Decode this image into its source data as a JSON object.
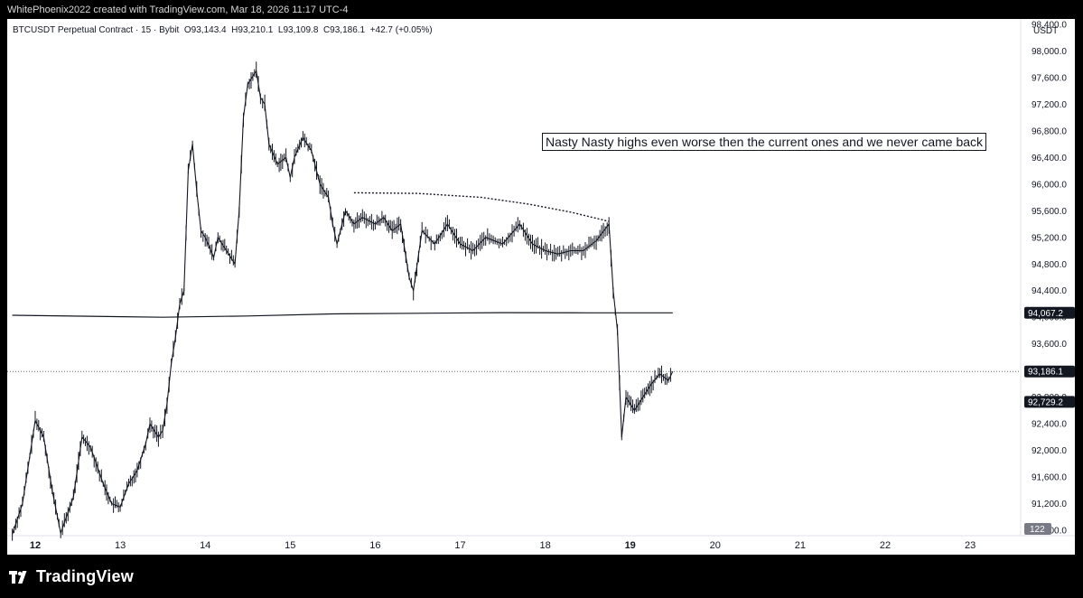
{
  "caption": "WhitePhoenix2022 created with TradingView.com, Mar 18, 2026 11:17 UTC-4",
  "legend": {
    "symbol": "BTCUSDT Perpetual Contract · 15 · Bybit",
    "o": "O93,143.4",
    "h": "H93,210.1",
    "l": "L93,109.8",
    "c": "C93,186.1",
    "change": "+42.7 (+0.05%)"
  },
  "annotation": "Nasty Nasty highs even worse then the current ones and we never came back",
  "footer": {
    "brand": "TradingView",
    "logo_icon": "tradingview-logo-icon"
  },
  "chart_data": {
    "type": "candlestick",
    "currency": "USDT",
    "y_axis": {
      "ticks": [
        "98,400.0",
        "98,000.0",
        "97,600.0",
        "97,200.0",
        "96,800.0",
        "96,400.0",
        "96,000.0",
        "95,600.0",
        "95,200.0",
        "94,800.0",
        "94,400.0",
        "94,000.0",
        "93,600.0",
        "93,200.0",
        "92,800.0",
        "92,400.0",
        "92,000.0",
        "91,600.0",
        "91,200.0",
        "90,800.0"
      ],
      "range": [
        90720,
        98480
      ]
    },
    "x_axis": {
      "ticks": [
        "12",
        "13",
        "14",
        "15",
        "16",
        "17",
        "18",
        "19",
        "20",
        "21",
        "22",
        "23"
      ],
      "bold": [
        "12",
        "19"
      ]
    },
    "price_labels": {
      "ma": "94,067.2",
      "last": "93,186.1",
      "low": "92,729.2",
      "volume": "122"
    },
    "moving_average": [
      [
        11.73,
        94030
      ],
      [
        13.5,
        94000
      ],
      [
        14.5,
        94020
      ],
      [
        15.5,
        94050
      ],
      [
        16.5,
        94060
      ],
      [
        17.5,
        94070
      ],
      [
        18.5,
        94067
      ],
      [
        19.5,
        94067.2
      ]
    ],
    "dotted_curve": [
      [
        15.75,
        95870
      ],
      [
        16.5,
        95860
      ],
      [
        17.25,
        95800
      ],
      [
        17.8,
        95700
      ],
      [
        18.3,
        95580
      ],
      [
        18.75,
        95440
      ]
    ],
    "price_path": [
      [
        11.73,
        90740
      ],
      [
        11.85,
        91200
      ],
      [
        12.0,
        92450
      ],
      [
        12.1,
        92200
      ],
      [
        12.2,
        91400
      ],
      [
        12.3,
        90760
      ],
      [
        12.45,
        91300
      ],
      [
        12.55,
        92200
      ],
      [
        12.65,
        92050
      ],
      [
        12.8,
        91500
      ],
      [
        12.9,
        91200
      ],
      [
        13.0,
        91150
      ],
      [
        13.1,
        91500
      ],
      [
        13.2,
        91700
      ],
      [
        13.3,
        92100
      ],
      [
        13.35,
        92400
      ],
      [
        13.45,
        92200
      ],
      [
        13.5,
        92300
      ],
      [
        13.55,
        92700
      ],
      [
        13.6,
        93300
      ],
      [
        13.65,
        93700
      ],
      [
        13.7,
        94200
      ],
      [
        13.75,
        94400
      ],
      [
        13.8,
        96200
      ],
      [
        13.85,
        96600
      ],
      [
        13.9,
        95900
      ],
      [
        13.95,
        95300
      ],
      [
        14.0,
        95200
      ],
      [
        14.1,
        94900
      ],
      [
        14.15,
        95200
      ],
      [
        14.25,
        95000
      ],
      [
        14.35,
        94800
      ],
      [
        14.4,
        95600
      ],
      [
        14.45,
        97000
      ],
      [
        14.5,
        97500
      ],
      [
        14.6,
        97700
      ],
      [
        14.65,
        97300
      ],
      [
        14.7,
        97200
      ],
      [
        14.75,
        96600
      ],
      [
        14.85,
        96300
      ],
      [
        14.95,
        96400
      ],
      [
        15.0,
        96100
      ],
      [
        15.05,
        96400
      ],
      [
        15.15,
        96700
      ],
      [
        15.25,
        96500
      ],
      [
        15.35,
        96000
      ],
      [
        15.45,
        95800
      ],
      [
        15.5,
        95400
      ],
      [
        15.55,
        95100
      ],
      [
        15.65,
        95600
      ],
      [
        15.75,
        95400
      ],
      [
        15.85,
        95500
      ],
      [
        16.0,
        95400
      ],
      [
        16.1,
        95500
      ],
      [
        16.2,
        95300
      ],
      [
        16.3,
        95400
      ],
      [
        16.4,
        94600
      ],
      [
        16.45,
        94400
      ],
      [
        16.55,
        95300
      ],
      [
        16.7,
        95100
      ],
      [
        16.85,
        95400
      ],
      [
        17.0,
        95100
      ],
      [
        17.15,
        95000
      ],
      [
        17.3,
        95200
      ],
      [
        17.5,
        95100
      ],
      [
        17.7,
        95400
      ],
      [
        17.85,
        95100
      ],
      [
        18.0,
        95000
      ],
      [
        18.15,
        94950
      ],
      [
        18.3,
        95000
      ],
      [
        18.45,
        95000
      ],
      [
        18.6,
        95150
      ],
      [
        18.75,
        95400
      ],
      [
        18.8,
        94400
      ],
      [
        18.85,
        93800
      ],
      [
        18.9,
        92200
      ],
      [
        18.95,
        92800
      ],
      [
        19.05,
        92600
      ],
      [
        19.15,
        92800
      ],
      [
        19.25,
        93000
      ],
      [
        19.35,
        93150
      ],
      [
        19.45,
        93050
      ],
      [
        19.5,
        93186.1
      ]
    ],
    "last_price": 93186.1
  }
}
